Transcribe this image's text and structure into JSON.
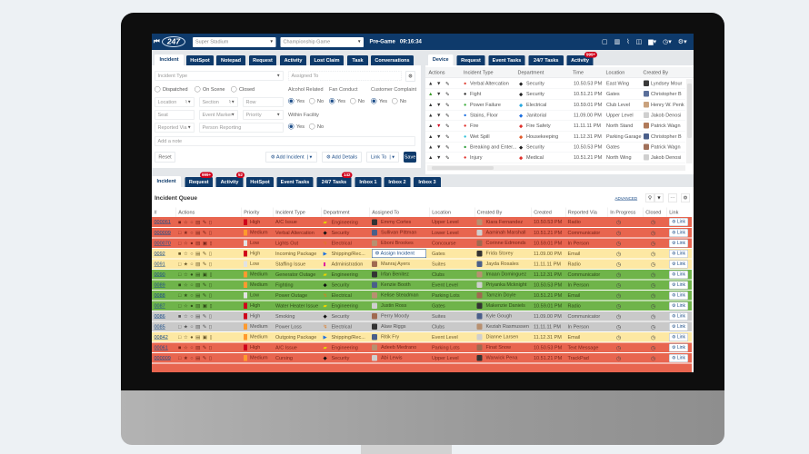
{
  "header": {
    "logo": "247",
    "venue": "Super Stadium",
    "event": "Championship Game",
    "phase": "Pre-Game",
    "clock": "09:16:34",
    "icons": [
      "chat-icon",
      "map-icon",
      "paperclip-icon",
      "note-icon",
      "chart-icon",
      "clock-icon",
      "gear-icon"
    ]
  },
  "form": {
    "tabs": [
      "Incident",
      "HotSpot",
      "Notepad",
      "Request",
      "Activity",
      "Lost Claim",
      "Task",
      "Conversations"
    ],
    "incident_type": "Incident Type",
    "assigned_to": "Assigned To",
    "status": [
      "Dispatched",
      "On Scene",
      "Closed"
    ],
    "flags": [
      "Alcohol Related",
      "Fan Conduct",
      "Customer Complaint"
    ],
    "within_facility": "Within Facility",
    "yes": "Yes",
    "no": "No",
    "location": "Location",
    "section": "Section",
    "row": "Row",
    "seat": "Seat",
    "event_marker": "Event Marker",
    "priority": "Priority",
    "reported_via": "Reported Via",
    "person_reporting": "Person Reporting",
    "note": "Add a note",
    "reset": "Reset",
    "add_incident": "Add Incident",
    "add_details": "Add Details",
    "link_to": "Link To",
    "save": "Save"
  },
  "device": {
    "tabs": [
      "Device",
      "Request",
      "Event Tasks",
      "24/7 Tasks",
      "Activity"
    ],
    "activity_badge": "999+",
    "columns": [
      "Actions",
      "Incident Type",
      "Department",
      "Time",
      "Location",
      "Created By"
    ],
    "rows": [
      {
        "vote": "none",
        "type": "Verbal Altercation",
        "type_color": "#e0463a",
        "dept": "Security",
        "dept_color": "#222",
        "time": "10.50.53 PM",
        "location": "East Wing",
        "by": "Lyndsey Mour"
      },
      {
        "vote": "up",
        "type": "Fight",
        "type_color": "#222",
        "dept": "Security",
        "dept_color": "#222",
        "time": "10.51.21 PM",
        "location": "Gates",
        "by": "Christopher B"
      },
      {
        "vote": "none",
        "type": "Power Failure",
        "type_color": "#3fae3f",
        "dept": "Electrical",
        "dept_color": "#29a9e0",
        "time": "10.59.01 PM",
        "location": "Club Level",
        "by": "Henry W. Penk"
      },
      {
        "vote": "none",
        "type": "Stains, Floor",
        "type_color": "#1c6fe0",
        "dept": "Janitorial",
        "dept_color": "#1c6fe0",
        "time": "11.09.00 PM",
        "location": "Upper Level",
        "by": "Jakob Denosi"
      },
      {
        "vote": "down",
        "type": "Fire",
        "type_color": "#e0302a",
        "dept": "Fire Safety",
        "dept_color": "#e0302a",
        "time": "11.11.11 PM",
        "location": "North Stand",
        "by": "Patrick Wagn"
      },
      {
        "vote": "none",
        "type": "Wet Spill",
        "type_color": "#2cc0d8",
        "dept": "Housekeeping",
        "dept_color": "#e05a2a",
        "time": "11.12.31 PM",
        "location": "Parking Garage",
        "by": "Christopher B"
      },
      {
        "vote": "none",
        "type": "Breaking and Enter...",
        "type_color": "#2e9e3a",
        "dept": "Security",
        "dept_color": "#222",
        "time": "10.50.53 PM",
        "location": "Gates",
        "by": "Patrick Wagn"
      },
      {
        "vote": "none",
        "type": "Injury",
        "type_color": "#e0302a",
        "dept": "Medical",
        "dept_color": "#e0302a",
        "time": "10.51.21 PM",
        "location": "North Wing",
        "by": "Jakob Denosi"
      }
    ]
  },
  "queue": {
    "tabs": [
      "Incident",
      "Request",
      "Activity",
      "HotSpot",
      "Event Tasks",
      "24/7 Tasks",
      "Inbox 1",
      "Inbox 2",
      "Inbox 3"
    ],
    "badges": {
      "request": "999+",
      "activity": "52",
      "tasks247": "142"
    },
    "title": "Incident Queue",
    "advanced": "ADVANCED",
    "link_label": "Link",
    "assign_label": "Assign Incident",
    "columns": [
      "#",
      "Actions",
      "Priority",
      "Incident Type",
      "Department",
      "Assigned To",
      "Location",
      "Created By",
      "Created",
      "Reported Via",
      "In Progress",
      "Closed",
      "Link"
    ],
    "priority_colors": {
      "High": "#d0021b",
      "Medium": "#ff9a2e",
      "Low": "#e2e2e2"
    },
    "status_colors": {
      "red": "#e8654f",
      "yellow": "#fde8a3",
      "green": "#6fb44a",
      "gray": "#c9c9c9"
    },
    "rows": [
      {
        "id": "000061",
        "status": "red",
        "priority": "High",
        "type": "A/C Issue",
        "dept": "Engineering",
        "assigned": "Emmy Cortes",
        "location": "Upper Level",
        "by": "Kiara Fernandez",
        "created": "10.50.53 PM",
        "via": "Radio"
      },
      {
        "id": "000009",
        "status": "red",
        "priority": "Medium",
        "type": "Verbal Altercation",
        "dept": "Security",
        "assigned": "Sullivan Pittman",
        "location": "Lower Level",
        "by": "Aaminah Marshall",
        "created": "10.51.21 PM",
        "via": "Communicator"
      },
      {
        "id": "000070",
        "status": "red",
        "priority": "Low",
        "type": "Lights Out",
        "dept": "Electrical",
        "assigned": "Eboni Brookes",
        "location": "Concourse",
        "by": "Corinne Edmonds",
        "created": "10.59.01 PM",
        "via": "In Person"
      },
      {
        "id": "0092",
        "status": "yellow",
        "priority": "High",
        "type": "Incoming Package",
        "dept": "Shipping/Rec...",
        "assigned": "",
        "location": "Gates",
        "by": "Frida Storey",
        "created": "11.09.00 PM",
        "via": "Email"
      },
      {
        "id": "0091",
        "status": "yellow",
        "priority": "Low",
        "type": "Staffing Issue",
        "dept": "Administration",
        "assigned": "Manraj Ayers",
        "location": "Suites",
        "by": "Jayda Rosales",
        "created": "11.11.11 PM",
        "via": "Radio"
      },
      {
        "id": "0090",
        "status": "green",
        "priority": "Medium",
        "type": "Generator Outage",
        "dept": "Engineering",
        "assigned": "Irfan Benitez",
        "location": "Clubs",
        "by": "Imaan Dominguez",
        "created": "11.12.31 PM",
        "via": "Communicator"
      },
      {
        "id": "0089",
        "status": "green",
        "priority": "Medium",
        "type": "Fighting",
        "dept": "Security",
        "assigned": "Kenzie Booth",
        "location": "Event Level",
        "by": "Priyanka Mcknight",
        "created": "10.50.53 PM",
        "via": "In Person"
      },
      {
        "id": "0088",
        "status": "green",
        "priority": "Low",
        "type": "Power Outage",
        "dept": "Electrical",
        "assigned": "Kelise Steadman",
        "location": "Parking Lots",
        "by": "Tamzin Doyle",
        "created": "10.51.21 PM",
        "via": "Email"
      },
      {
        "id": "0087",
        "status": "green",
        "priority": "High",
        "type": "Water Heater Issue",
        "dept": "Engineering",
        "assigned": "Justin Ross",
        "location": "Gates",
        "by": "Makenzie Daniels",
        "created": "10.59.01 PM",
        "via": "Radio"
      },
      {
        "id": "0086",
        "status": "gray",
        "priority": "High",
        "type": "Smoking",
        "dept": "Security",
        "assigned": "Perry Moody",
        "location": "Suites",
        "by": "Kyle Gough",
        "created": "11.09.00 PM",
        "via": "Communicator"
      },
      {
        "id": "0085",
        "status": "gray",
        "priority": "Medium",
        "type": "Power Loss",
        "dept": "Electrical",
        "assigned": "Alaw Riggs",
        "location": "Clubs",
        "by": "Keziah Rasmussen",
        "created": "11.11.11 PM",
        "via": "In Person"
      },
      {
        "id": "00842",
        "status": "yellow",
        "priority": "Medium",
        "type": "Outgoing Package",
        "dept": "Shipping/Rec...",
        "assigned": "Ritik Fry",
        "location": "Event Level",
        "by": "Dianne Larsen",
        "created": "11.12.31 PM",
        "via": "Email"
      },
      {
        "id": "00061",
        "status": "red",
        "priority": "High",
        "type": "A/C Issue",
        "dept": "Engineering",
        "assigned": "Adeeb Medrano",
        "location": "Parking Lots",
        "by": "Finat Snow",
        "created": "10.50.53 PM",
        "via": "Text Message"
      },
      {
        "id": "000009",
        "status": "red",
        "priority": "Medium",
        "type": "Cursing",
        "dept": "Security",
        "assigned": "Abi Lewis",
        "location": "Upper Level",
        "by": "Warwick Pena",
        "created": "10.51.21 PM",
        "via": "TrackPad"
      }
    ]
  }
}
